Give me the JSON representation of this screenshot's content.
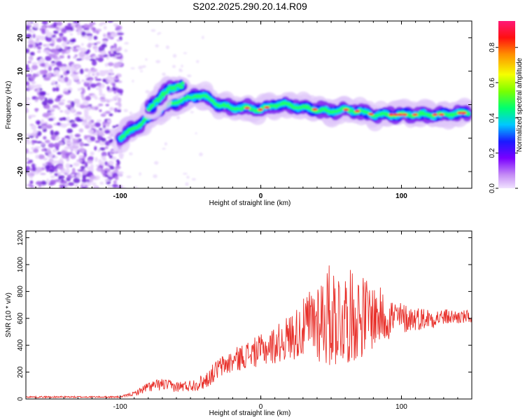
{
  "title": "S202.2025.290.20.14.R09",
  "colors": {
    "snr_line": "#e8302a",
    "axis": "#000000"
  },
  "chart_data": [
    {
      "type": "heatmap",
      "xlabel": "Height of straight line (km)",
      "ylabel": "Frequency (Hz)",
      "xlim": [
        -167,
        150
      ],
      "ylim": [
        -25,
        25
      ],
      "xticks": [
        -100,
        0,
        100
      ],
      "yticks": [
        -20,
        -10,
        0,
        10,
        20
      ],
      "colorbar": {
        "label": "Normalized spectral amplitude",
        "range": [
          0,
          0.95
        ],
        "ticks": [
          "0.0",
          "0.2",
          "0.4",
          "0.6",
          "0.8"
        ],
        "tick_values": [
          0.0,
          0.2,
          0.4,
          0.6,
          0.8
        ]
      },
      "ridge": {
        "x": [
          -100,
          -90,
          -80,
          -70,
          -60,
          -50,
          -45,
          -40,
          -30,
          -20,
          -10,
          0,
          10,
          20,
          30,
          40,
          50,
          60,
          70,
          80,
          90,
          100,
          110,
          120,
          130,
          140,
          148
        ],
        "y": [
          -10,
          -7,
          -4,
          -1,
          1,
          2,
          3,
          2.5,
          0,
          -1,
          -1,
          -1.5,
          0,
          0,
          -1,
          -1.5,
          -2,
          -1.5,
          -2,
          -3,
          -3,
          -3,
          -3,
          -3,
          -3,
          -2.5,
          -2.5
        ]
      },
      "branch": {
        "x": [
          -80,
          -75,
          -70,
          -65,
          -60,
          -55
        ],
        "y": [
          -2,
          1,
          3,
          4.5,
          5.5,
          6
        ]
      }
    },
    {
      "type": "line",
      "xlabel": "Height of straight line (km)",
      "ylabel": "SNR (10 * v/v)",
      "xlim": [
        -167,
        150
      ],
      "ylim": [
        0,
        1250
      ],
      "xticks": [
        -100,
        0,
        100
      ],
      "yticks": [
        0,
        200,
        400,
        600,
        800,
        1000,
        1200
      ],
      "envelope": {
        "x": [
          -167,
          -100,
          -90,
          -80,
          -70,
          -60,
          -50,
          -40,
          -30,
          -20,
          -10,
          0,
          10,
          20,
          30,
          40,
          50,
          60,
          70,
          80,
          90,
          100,
          110,
          120,
          130,
          150
        ],
        "mean": [
          15,
          15,
          40,
          90,
          110,
          90,
          100,
          130,
          230,
          280,
          330,
          360,
          400,
          460,
          520,
          600,
          620,
          610,
          620,
          620,
          610,
          600,
          600,
          600,
          610,
          610
        ],
        "amplitude": [
          6,
          6,
          15,
          40,
          45,
          40,
          45,
          60,
          80,
          90,
          100,
          120,
          140,
          170,
          220,
          330,
          400,
          360,
          330,
          250,
          180,
          120,
          90,
          80,
          60,
          50
        ]
      }
    }
  ]
}
